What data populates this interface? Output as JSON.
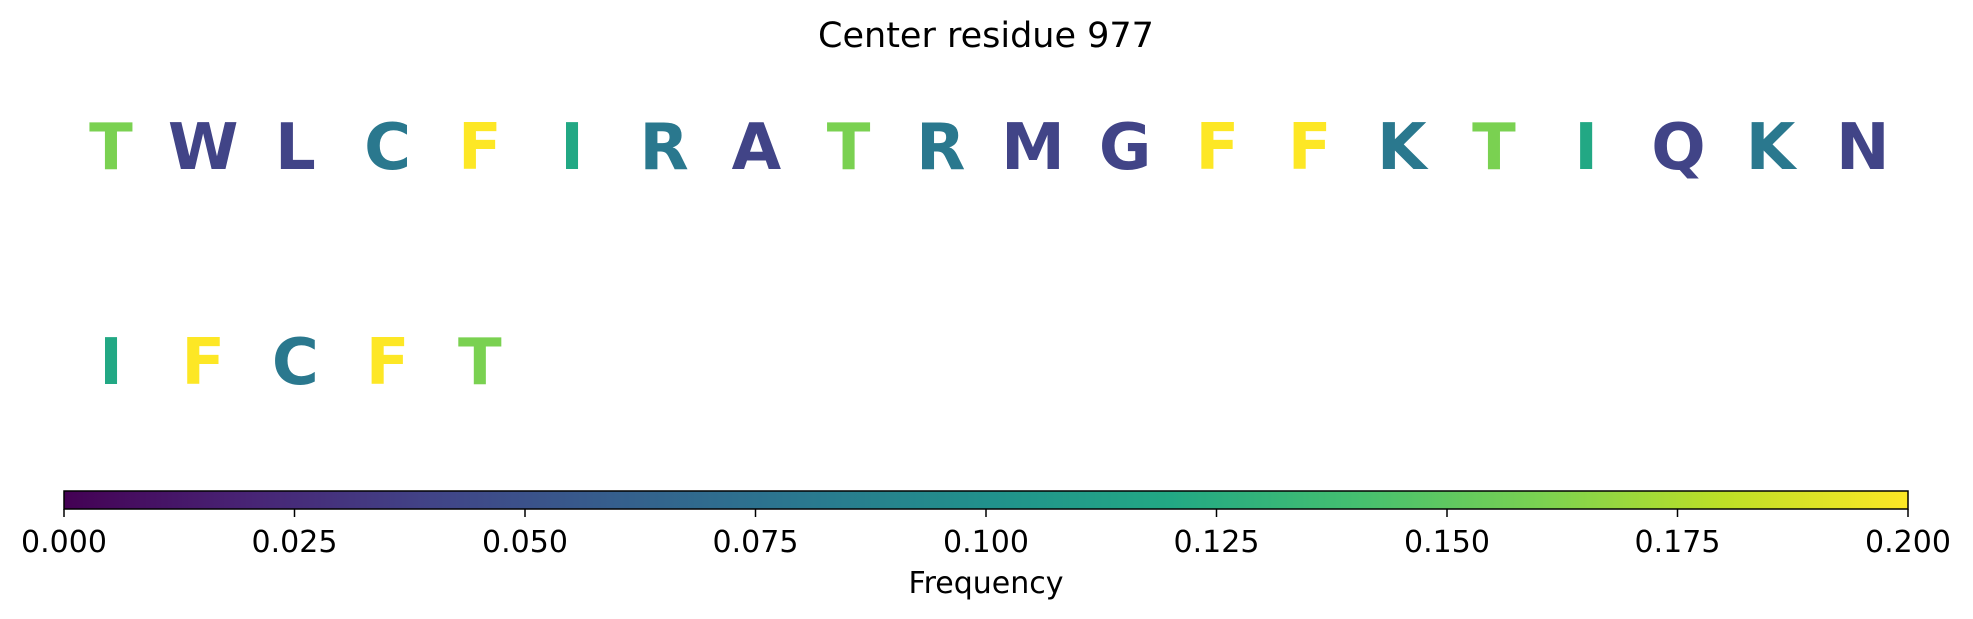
{
  "chart_data": {
    "type": "table",
    "title": "Center residue 977",
    "rows": [
      {
        "residues": [
          {
            "letter": "T",
            "frequency": 0.16
          },
          {
            "letter": "W",
            "frequency": 0.04
          },
          {
            "letter": "L",
            "frequency": 0.04
          },
          {
            "letter": "C",
            "frequency": 0.08
          },
          {
            "letter": "F",
            "frequency": 0.2
          },
          {
            "letter": "I",
            "frequency": 0.12
          },
          {
            "letter": "R",
            "frequency": 0.08
          },
          {
            "letter": "A",
            "frequency": 0.04
          },
          {
            "letter": "T",
            "frequency": 0.16
          },
          {
            "letter": "R",
            "frequency": 0.08
          },
          {
            "letter": "M",
            "frequency": 0.04
          },
          {
            "letter": "G",
            "frequency": 0.04
          },
          {
            "letter": "F",
            "frequency": 0.2
          },
          {
            "letter": "F",
            "frequency": 0.2
          },
          {
            "letter": "K",
            "frequency": 0.08
          },
          {
            "letter": "T",
            "frequency": 0.16
          },
          {
            "letter": "I",
            "frequency": 0.12
          },
          {
            "letter": "Q",
            "frequency": 0.04
          },
          {
            "letter": "K",
            "frequency": 0.08
          },
          {
            "letter": "N",
            "frequency": 0.04
          }
        ]
      },
      {
        "residues": [
          {
            "letter": "I",
            "frequency": 0.12
          },
          {
            "letter": "F",
            "frequency": 0.2
          },
          {
            "letter": "C",
            "frequency": 0.08
          },
          {
            "letter": "F",
            "frequency": 0.2
          },
          {
            "letter": "T",
            "frequency": 0.16
          }
        ]
      }
    ],
    "colorbar": {
      "label": "Frequency",
      "range": [
        0.0,
        0.2
      ],
      "colormap": "viridis",
      "ticks": [
        0.0,
        0.025,
        0.05,
        0.075,
        0.1,
        0.125,
        0.15,
        0.175,
        0.2
      ],
      "tick_labels": [
        "0.000",
        "0.025",
        "0.050",
        "0.075",
        "0.100",
        "0.125",
        "0.150",
        "0.175",
        "0.200"
      ]
    }
  }
}
